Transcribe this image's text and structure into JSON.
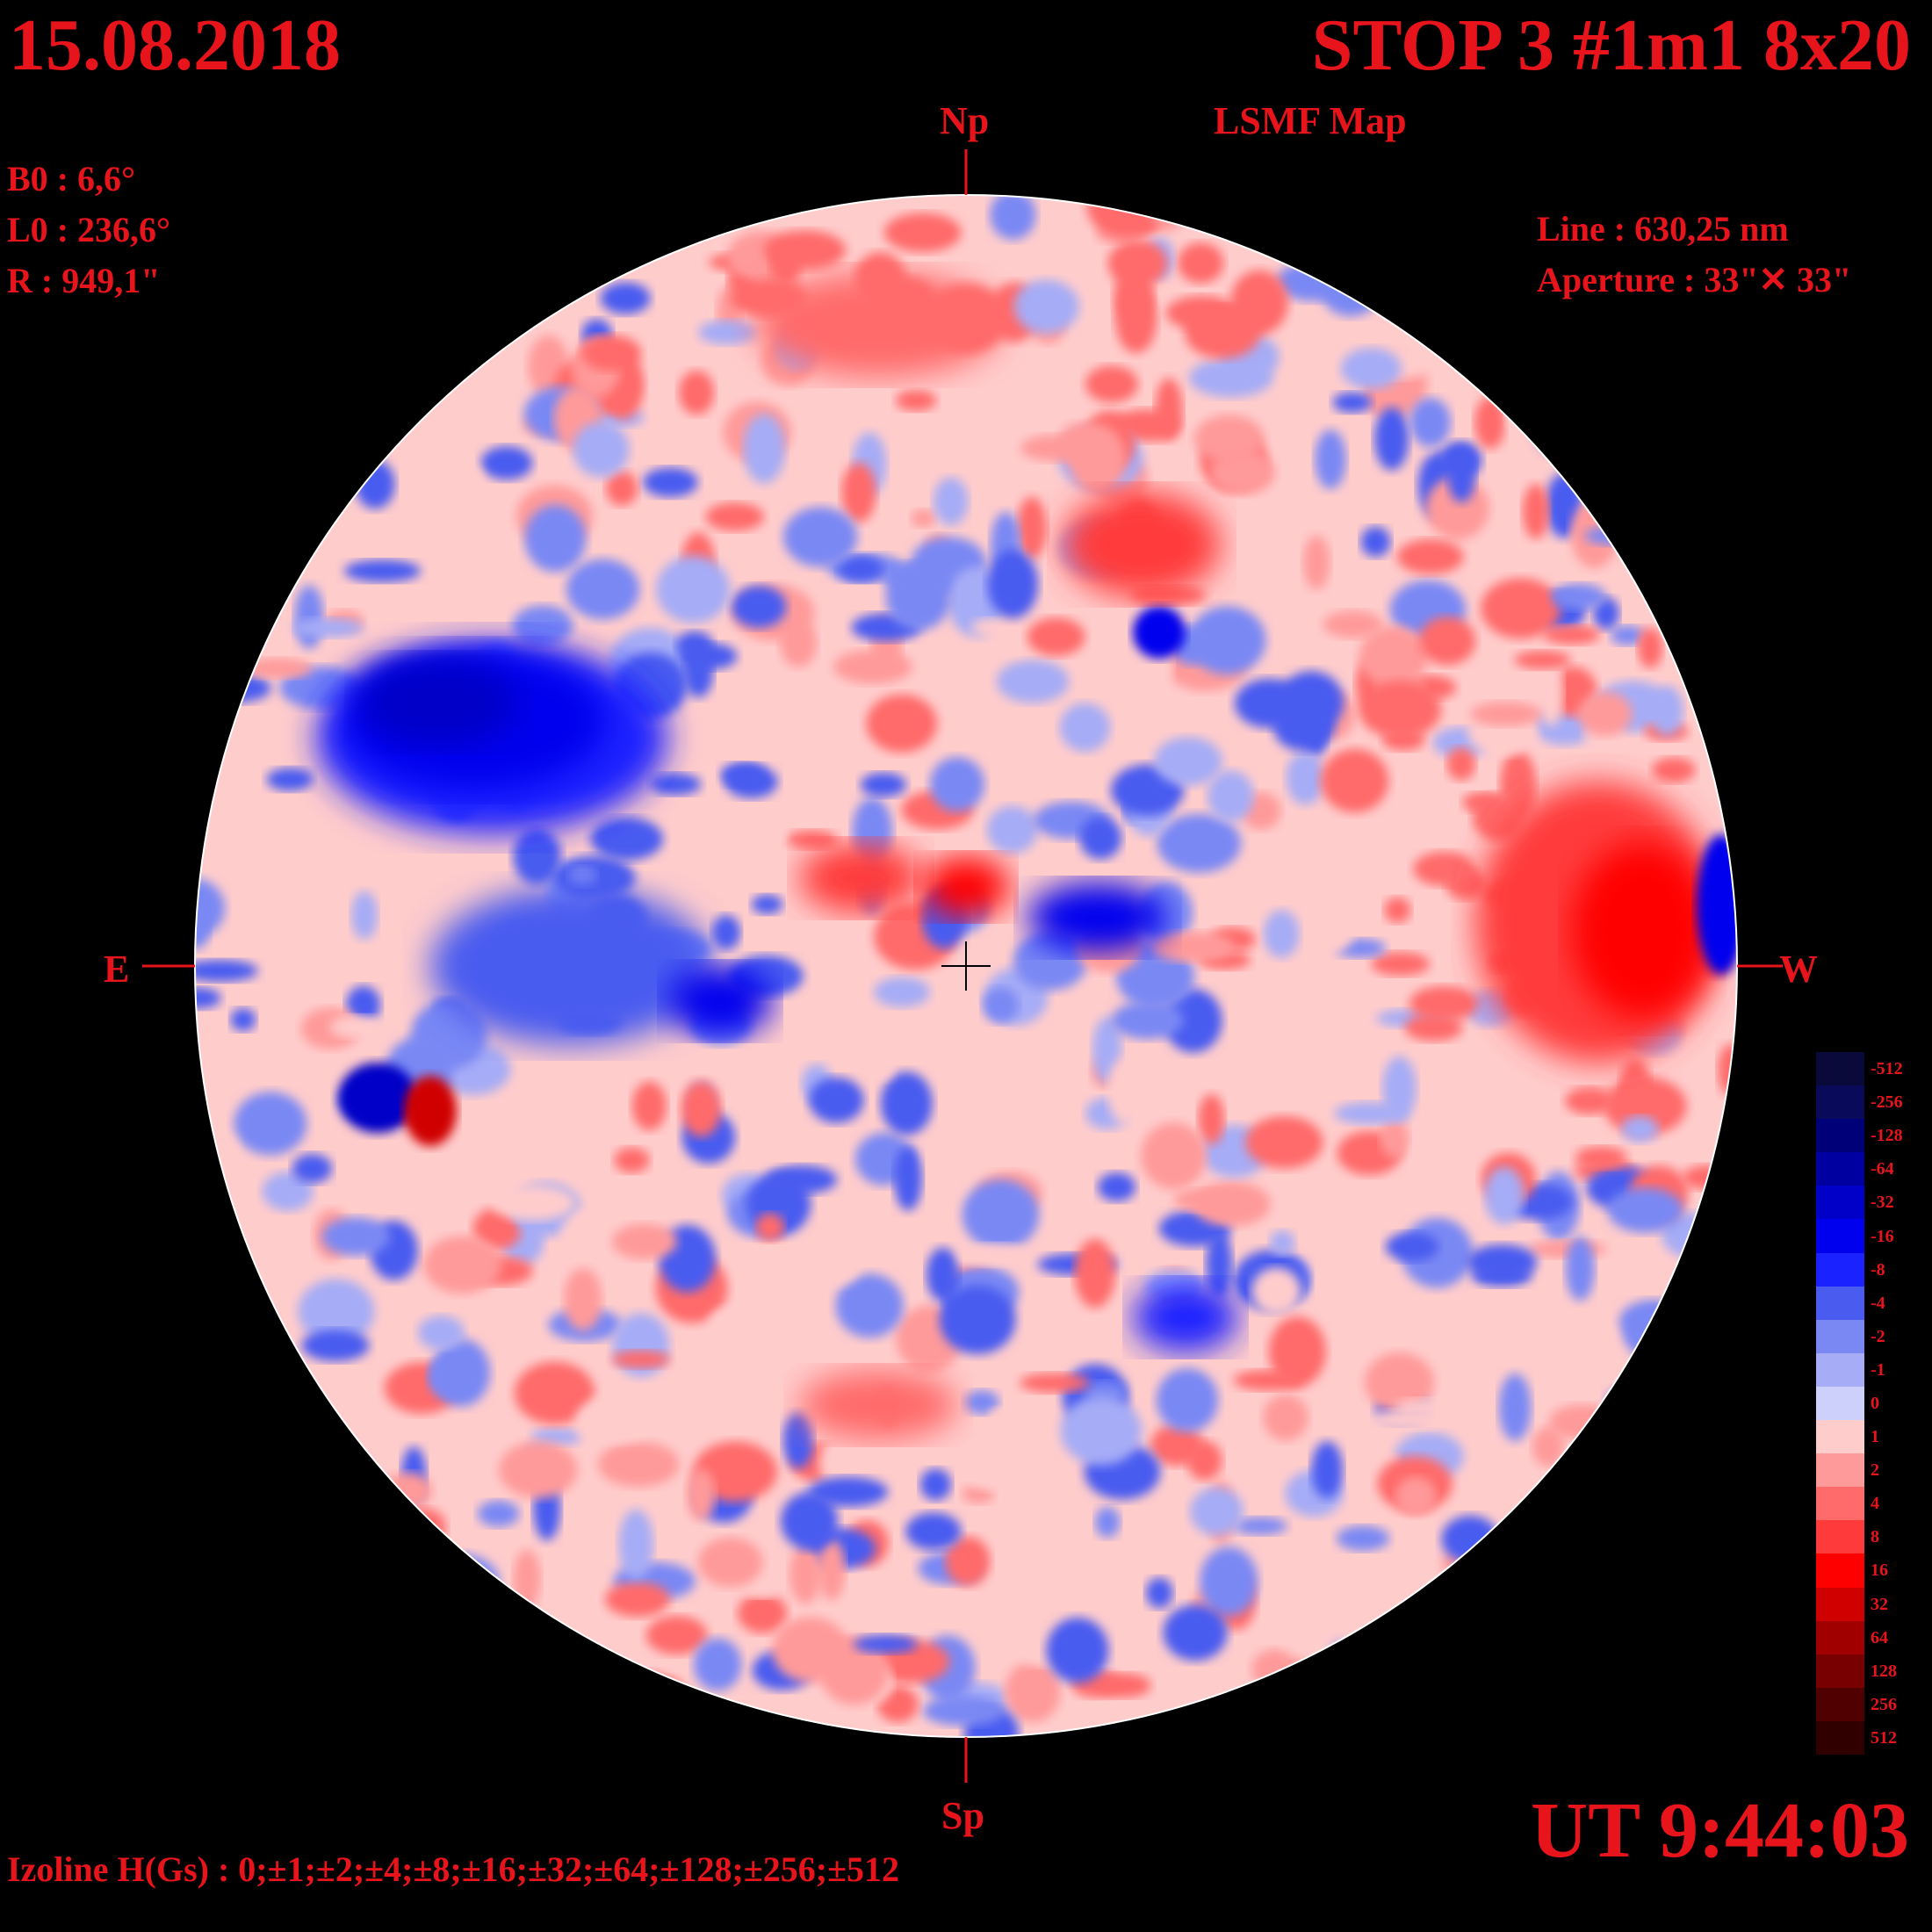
{
  "header": {
    "date": "15.08.2018",
    "title": "STOP 3 #1m1 8x20",
    "subtitle": "LSMF  Map"
  },
  "params": [
    {
      "label": "B0",
      "value": "6,6°"
    },
    {
      "label": "L0",
      "value": "236,6°"
    },
    {
      "label": "R ",
      "value": "949,1\""
    }
  ],
  "instrument": {
    "line": "Line :  630,25 nm",
    "aperture": "Aperture : 33\"✕ 33\""
  },
  "orientation": {
    "north": "Np",
    "south": "Sp",
    "east": "E",
    "west": "W"
  },
  "footer": {
    "izoline": "Izoline H(Gs) : 0;±1;±2;±4;±8;±16;±32;±64;±128;±256;±512",
    "ut": "UT 9:44:03"
  },
  "colorbar": {
    "levels": [
      {
        "label": "-512",
        "color": "#0a0a3a"
      },
      {
        "label": "-256",
        "color": "#0a0a5a"
      },
      {
        "label": "-128",
        "color": "#000078"
      },
      {
        "label": "-64",
        "color": "#0000a0"
      },
      {
        "label": "-32",
        "color": "#0000c8"
      },
      {
        "label": "-16",
        "color": "#0000ee"
      },
      {
        "label": "-8",
        "color": "#1a22ff"
      },
      {
        "label": "-4",
        "color": "#4a5cf0"
      },
      {
        "label": "-2",
        "color": "#7a88f4"
      },
      {
        "label": "-1",
        "color": "#a6acf6"
      },
      {
        "label": "0",
        "color": "#ccd0fa"
      },
      {
        "label": "1",
        "color": "#ffcccc"
      },
      {
        "label": "2",
        "color": "#ff9a9a"
      },
      {
        "label": "4",
        "color": "#ff6a6a"
      },
      {
        "label": "8",
        "color": "#ff3a3a"
      },
      {
        "label": "16",
        "color": "#ff0000"
      },
      {
        "label": "32",
        "color": "#d00000"
      },
      {
        "label": "64",
        "color": "#a00000"
      },
      {
        "label": "128",
        "color": "#780000"
      },
      {
        "label": "256",
        "color": "#500000"
      },
      {
        "label": "512",
        "color": "#300000"
      }
    ]
  },
  "map_regions": [
    {
      "polarity": "negative",
      "level": -32,
      "area": "east-north"
    },
    {
      "polarity": "negative",
      "level": -16,
      "area": "east-south-spot"
    },
    {
      "polarity": "positive",
      "level": 16,
      "area": "west-limb"
    },
    {
      "polarity": "positive",
      "level": 8,
      "area": "north"
    },
    {
      "polarity": "negative",
      "level": -8,
      "area": "center-east"
    },
    {
      "polarity": "positive",
      "level": 4,
      "area": "center"
    },
    {
      "polarity": "positive",
      "level": 32,
      "area": "east-south-spot"
    },
    {
      "polarity": "negative",
      "level": -4,
      "area": "south"
    }
  ]
}
